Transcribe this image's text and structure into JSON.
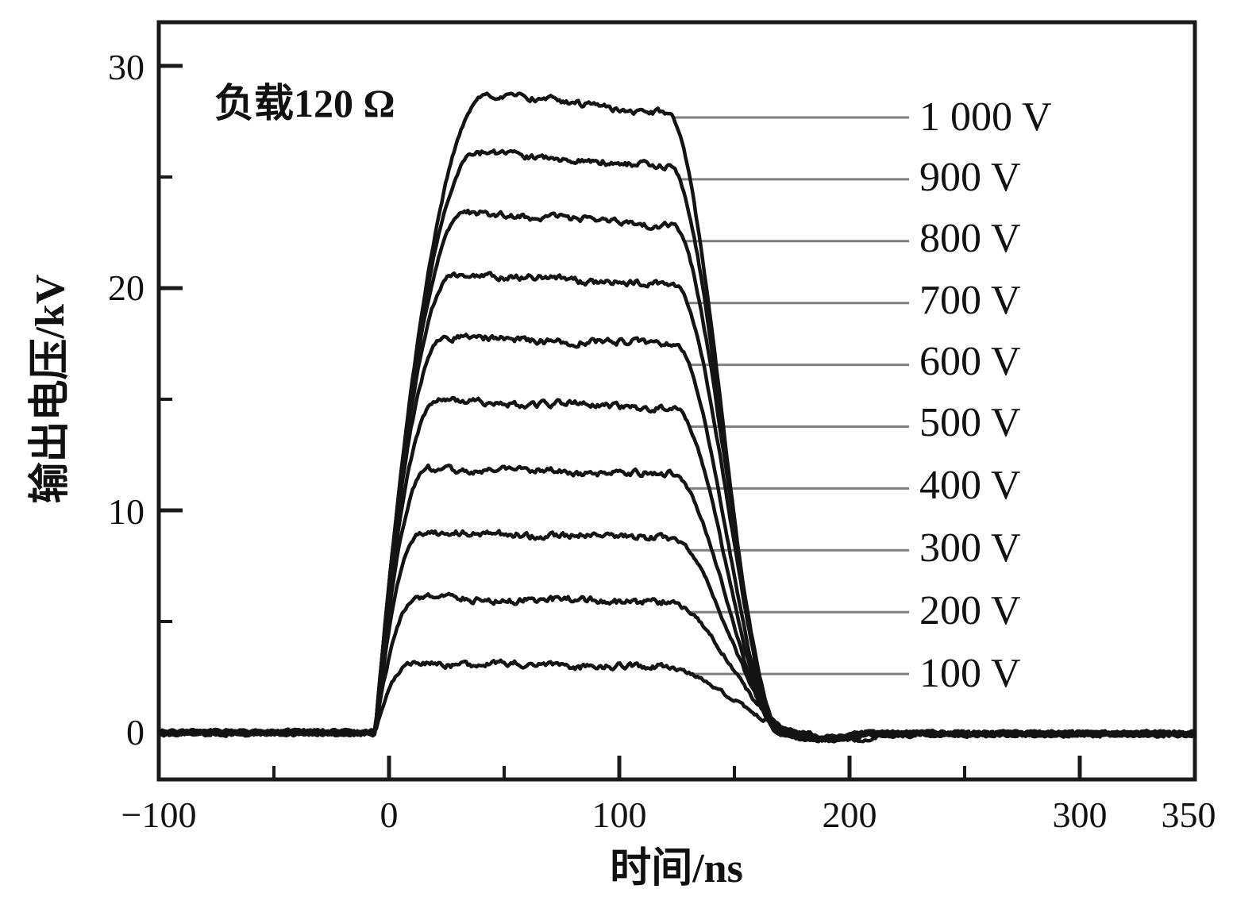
{
  "chart_data": {
    "type": "line",
    "title": "负载120 Ω",
    "xlabel": "时间/ns",
    "ylabel": "输出电压/kV",
    "xlim": [
      -100,
      350
    ],
    "ylim": [
      -2.1,
      32
    ],
    "grid": false,
    "legend_position": "right-side labels with leader lines",
    "x_unit": "ns",
    "y_unit": "kV",
    "x_tick_labels": [
      "−100",
      "0",
      "100",
      "200",
      "300",
      "350"
    ],
    "x_major_ticks": [
      -100,
      0,
      100,
      200,
      300,
      350
    ],
    "x_minor_ticks": [
      -50,
      50,
      150,
      250
    ],
    "y_tick_labels": [
      "30",
      "20",
      "10",
      "0"
    ],
    "y_major_ticks": [
      0,
      10,
      20,
      30
    ],
    "y_minor_ticks": [
      5,
      15,
      25
    ],
    "colors": {
      "background": "#ffffff",
      "axis": "#1a1a1a",
      "curve": "#141414",
      "leader_line": "#7f7f7f",
      "text": "#111111"
    },
    "series": [
      {
        "label": "1 000 V",
        "charging_voltage_V": 1000,
        "plateau_kV": 28.5,
        "peak_kV": 28.75,
        "plateau_end_kV": 27.85,
        "rise_start_ns": -6,
        "rise_dur_ns": 49,
        "fall_start_ns": 121,
        "fall_dur_ns": 48
      },
      {
        "label": "900 V",
        "charging_voltage_V": 900,
        "plateau_kV": 25.9,
        "peak_kV": 26.1,
        "plateau_end_kV": 25.45,
        "rise_start_ns": -6,
        "rise_dur_ns": 44,
        "fall_start_ns": 122,
        "fall_dur_ns": 48
      },
      {
        "label": "800 V",
        "charging_voltage_V": 800,
        "plateau_kV": 23.2,
        "peak_kV": 23.4,
        "plateau_end_kV": 22.85,
        "rise_start_ns": -6,
        "rise_dur_ns": 39,
        "fall_start_ns": 123,
        "fall_dur_ns": 48
      },
      {
        "label": "700 V",
        "charging_voltage_V": 700,
        "plateau_kV": 20.4,
        "peak_kV": 20.6,
        "plateau_end_kV": 20.15,
        "rise_start_ns": -6,
        "rise_dur_ns": 34,
        "fall_start_ns": 124,
        "fall_dur_ns": 47
      },
      {
        "label": "600 V",
        "charging_voltage_V": 600,
        "plateau_kV": 17.6,
        "peak_kV": 17.8,
        "plateau_end_kV": 17.45,
        "rise_start_ns": -6,
        "rise_dur_ns": 30,
        "fall_start_ns": 124,
        "fall_dur_ns": 46
      },
      {
        "label": "500 V",
        "charging_voltage_V": 500,
        "plateau_kV": 14.75,
        "peak_kV": 14.95,
        "plateau_end_kV": 14.6,
        "rise_start_ns": -6,
        "rise_dur_ns": 27,
        "fall_start_ns": 124,
        "fall_dur_ns": 46
      },
      {
        "label": "400 V",
        "charging_voltage_V": 400,
        "plateau_kV": 11.7,
        "peak_kV": 11.9,
        "plateau_end_kV": 11.62,
        "rise_start_ns": -6,
        "rise_dur_ns": 23,
        "fall_start_ns": 123,
        "fall_dur_ns": 48
      },
      {
        "label": "300 V",
        "charging_voltage_V": 300,
        "plateau_kV": 8.8,
        "peak_kV": 9.0,
        "plateau_end_kV": 8.78,
        "rise_start_ns": -6,
        "rise_dur_ns": 20,
        "fall_start_ns": 122,
        "fall_dur_ns": 52
      },
      {
        "label": "200 V",
        "charging_voltage_V": 200,
        "plateau_kV": 5.9,
        "peak_kV": 6.05,
        "plateau_end_kV": 5.88,
        "rise_start_ns": -6,
        "rise_dur_ns": 18,
        "fall_start_ns": 121,
        "fall_dur_ns": 56
      },
      {
        "label": "100 V",
        "charging_voltage_V": 100,
        "plateau_kV": 3.0,
        "peak_kV": 3.12,
        "plateau_end_kV": 2.96,
        "rise_start_ns": -6,
        "rise_dur_ns": 16,
        "fall_start_ns": 119,
        "fall_dur_ns": 62
      }
    ]
  }
}
